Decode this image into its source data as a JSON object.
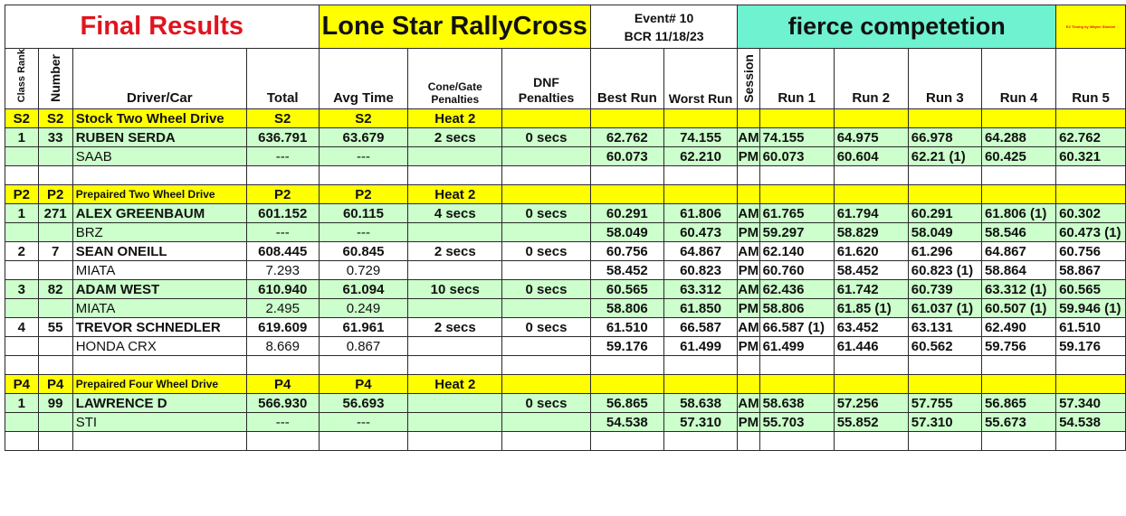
{
  "title": {
    "final_results": "Final Results",
    "series": "Lone Star RallyCross",
    "event_line1": "Event# 10",
    "event_line2": "BCR 11/18/23",
    "tagline": "fierce competetion",
    "credit": "E2 Timing by Wayne Stoebel"
  },
  "headers": {
    "class_rank": "Class Rank",
    "number": "Number",
    "driver_car": "Driver/Car",
    "total": "Total",
    "avg_time": "Avg Time",
    "cone_line1": "Cone/Gate",
    "cone_line2": "Penalties",
    "dnf_line1": "DNF",
    "dnf_line2": "Penalties",
    "best_run": "Best Run",
    "worst_run": "Worst Run",
    "session": "Session",
    "run1": "Run 1",
    "run2": "Run 2",
    "run3": "Run 3",
    "run4": "Run 4",
    "run5": "Run 5"
  },
  "s2": {
    "code": "S2",
    "name": "Stock Two Wheel Drive",
    "heat": "Heat 2",
    "d1": {
      "rank": "1",
      "num": "33",
      "driver": "RUBEN SERDA",
      "car": "SAAB",
      "total": "636.791",
      "avg": "63.679",
      "total2": "---",
      "avg2": "---",
      "cone": "2 secs",
      "dnf": "0 secs",
      "best_am": "62.762",
      "worst_am": "74.155",
      "best_pm": "60.073",
      "worst_pm": "62.210",
      "am": [
        "74.155",
        "64.975",
        "66.978",
        "64.288",
        "62.762"
      ],
      "pm": [
        "60.073",
        "60.604",
        "62.21 (1)",
        "60.425",
        "60.321"
      ]
    }
  },
  "p2": {
    "code": "P2",
    "name": "Prepaired Two Wheel Drive",
    "heat": "Heat 2",
    "d1": {
      "rank": "1",
      "num": "271",
      "driver": "ALEX GREENBAUM",
      "car": "BRZ",
      "total": "601.152",
      "avg": "60.115",
      "total2": "---",
      "avg2": "---",
      "cone": "4 secs",
      "dnf": "0 secs",
      "best_am": "60.291",
      "worst_am": "61.806",
      "best_pm": "58.049",
      "worst_pm": "60.473",
      "am": [
        "61.765",
        "61.794",
        "60.291",
        "61.806 (1)",
        "60.302"
      ],
      "pm": [
        "59.297",
        "58.829",
        "58.049",
        "58.546",
        "60.473 (1)"
      ]
    },
    "d2": {
      "rank": "2",
      "num": "7",
      "driver": "SEAN ONEILL",
      "car": "MIATA",
      "total": "608.445",
      "avg": "60.845",
      "total2": "7.293",
      "avg2": "0.729",
      "cone": "2 secs",
      "dnf": "0 secs",
      "best_am": "60.756",
      "worst_am": "64.867",
      "best_pm": "58.452",
      "worst_pm": "60.823",
      "am": [
        "62.140",
        "61.620",
        "61.296",
        "64.867",
        "60.756"
      ],
      "pm": [
        "60.760",
        "58.452",
        "60.823 (1)",
        "58.864",
        "58.867"
      ]
    },
    "d3": {
      "rank": "3",
      "num": "82",
      "driver": "ADAM WEST",
      "car": "MIATA",
      "total": "610.940",
      "avg": "61.094",
      "total2": "2.495",
      "avg2": "0.249",
      "cone": "10 secs",
      "dnf": "0 secs",
      "best_am": "60.565",
      "worst_am": "63.312",
      "best_pm": "58.806",
      "worst_pm": "61.850",
      "am": [
        "62.436",
        "61.742",
        "60.739",
        "63.312 (1)",
        "60.565"
      ],
      "pm": [
        "58.806",
        "61.85 (1)",
        "61.037 (1)",
        "60.507 (1)",
        "59.946 (1)"
      ]
    },
    "d4": {
      "rank": "4",
      "num": "55",
      "driver": "TREVOR SCHNEDLER",
      "car": "HONDA CRX",
      "total": "619.609",
      "avg": "61.961",
      "total2": "8.669",
      "avg2": "0.867",
      "cone": "2 secs",
      "dnf": "0 secs",
      "best_am": "61.510",
      "worst_am": "66.587",
      "best_pm": "59.176",
      "worst_pm": "61.499",
      "am": [
        "66.587 (1)",
        "63.452",
        "63.131",
        "62.490",
        "61.510"
      ],
      "pm": [
        "61.499",
        "61.446",
        "60.562",
        "59.756",
        "59.176"
      ]
    }
  },
  "p4": {
    "code": "P4",
    "name": "Prepaired Four Wheel Drive",
    "heat": "Heat 2",
    "d1": {
      "rank": "1",
      "num": "99",
      "driver": "LAWRENCE D",
      "car": "STI",
      "total": "566.930",
      "avg": "56.693",
      "total2": "---",
      "avg2": "---",
      "cone": "",
      "dnf": "0 secs",
      "best_am": "56.865",
      "worst_am": "58.638",
      "best_pm": "54.538",
      "worst_pm": "57.310",
      "am": [
        "58.638",
        "57.256",
        "57.755",
        "56.865",
        "57.340"
      ],
      "pm": [
        "55.703",
        "55.852",
        "57.310",
        "55.673",
        "54.538"
      ]
    }
  },
  "session_am": "AM",
  "session_pm": "PM",
  "colors": {
    "title_red": "#e0141e",
    "yellow": "#ffff00",
    "cyan": "#6ef2d0",
    "green": "#ccffcc"
  }
}
